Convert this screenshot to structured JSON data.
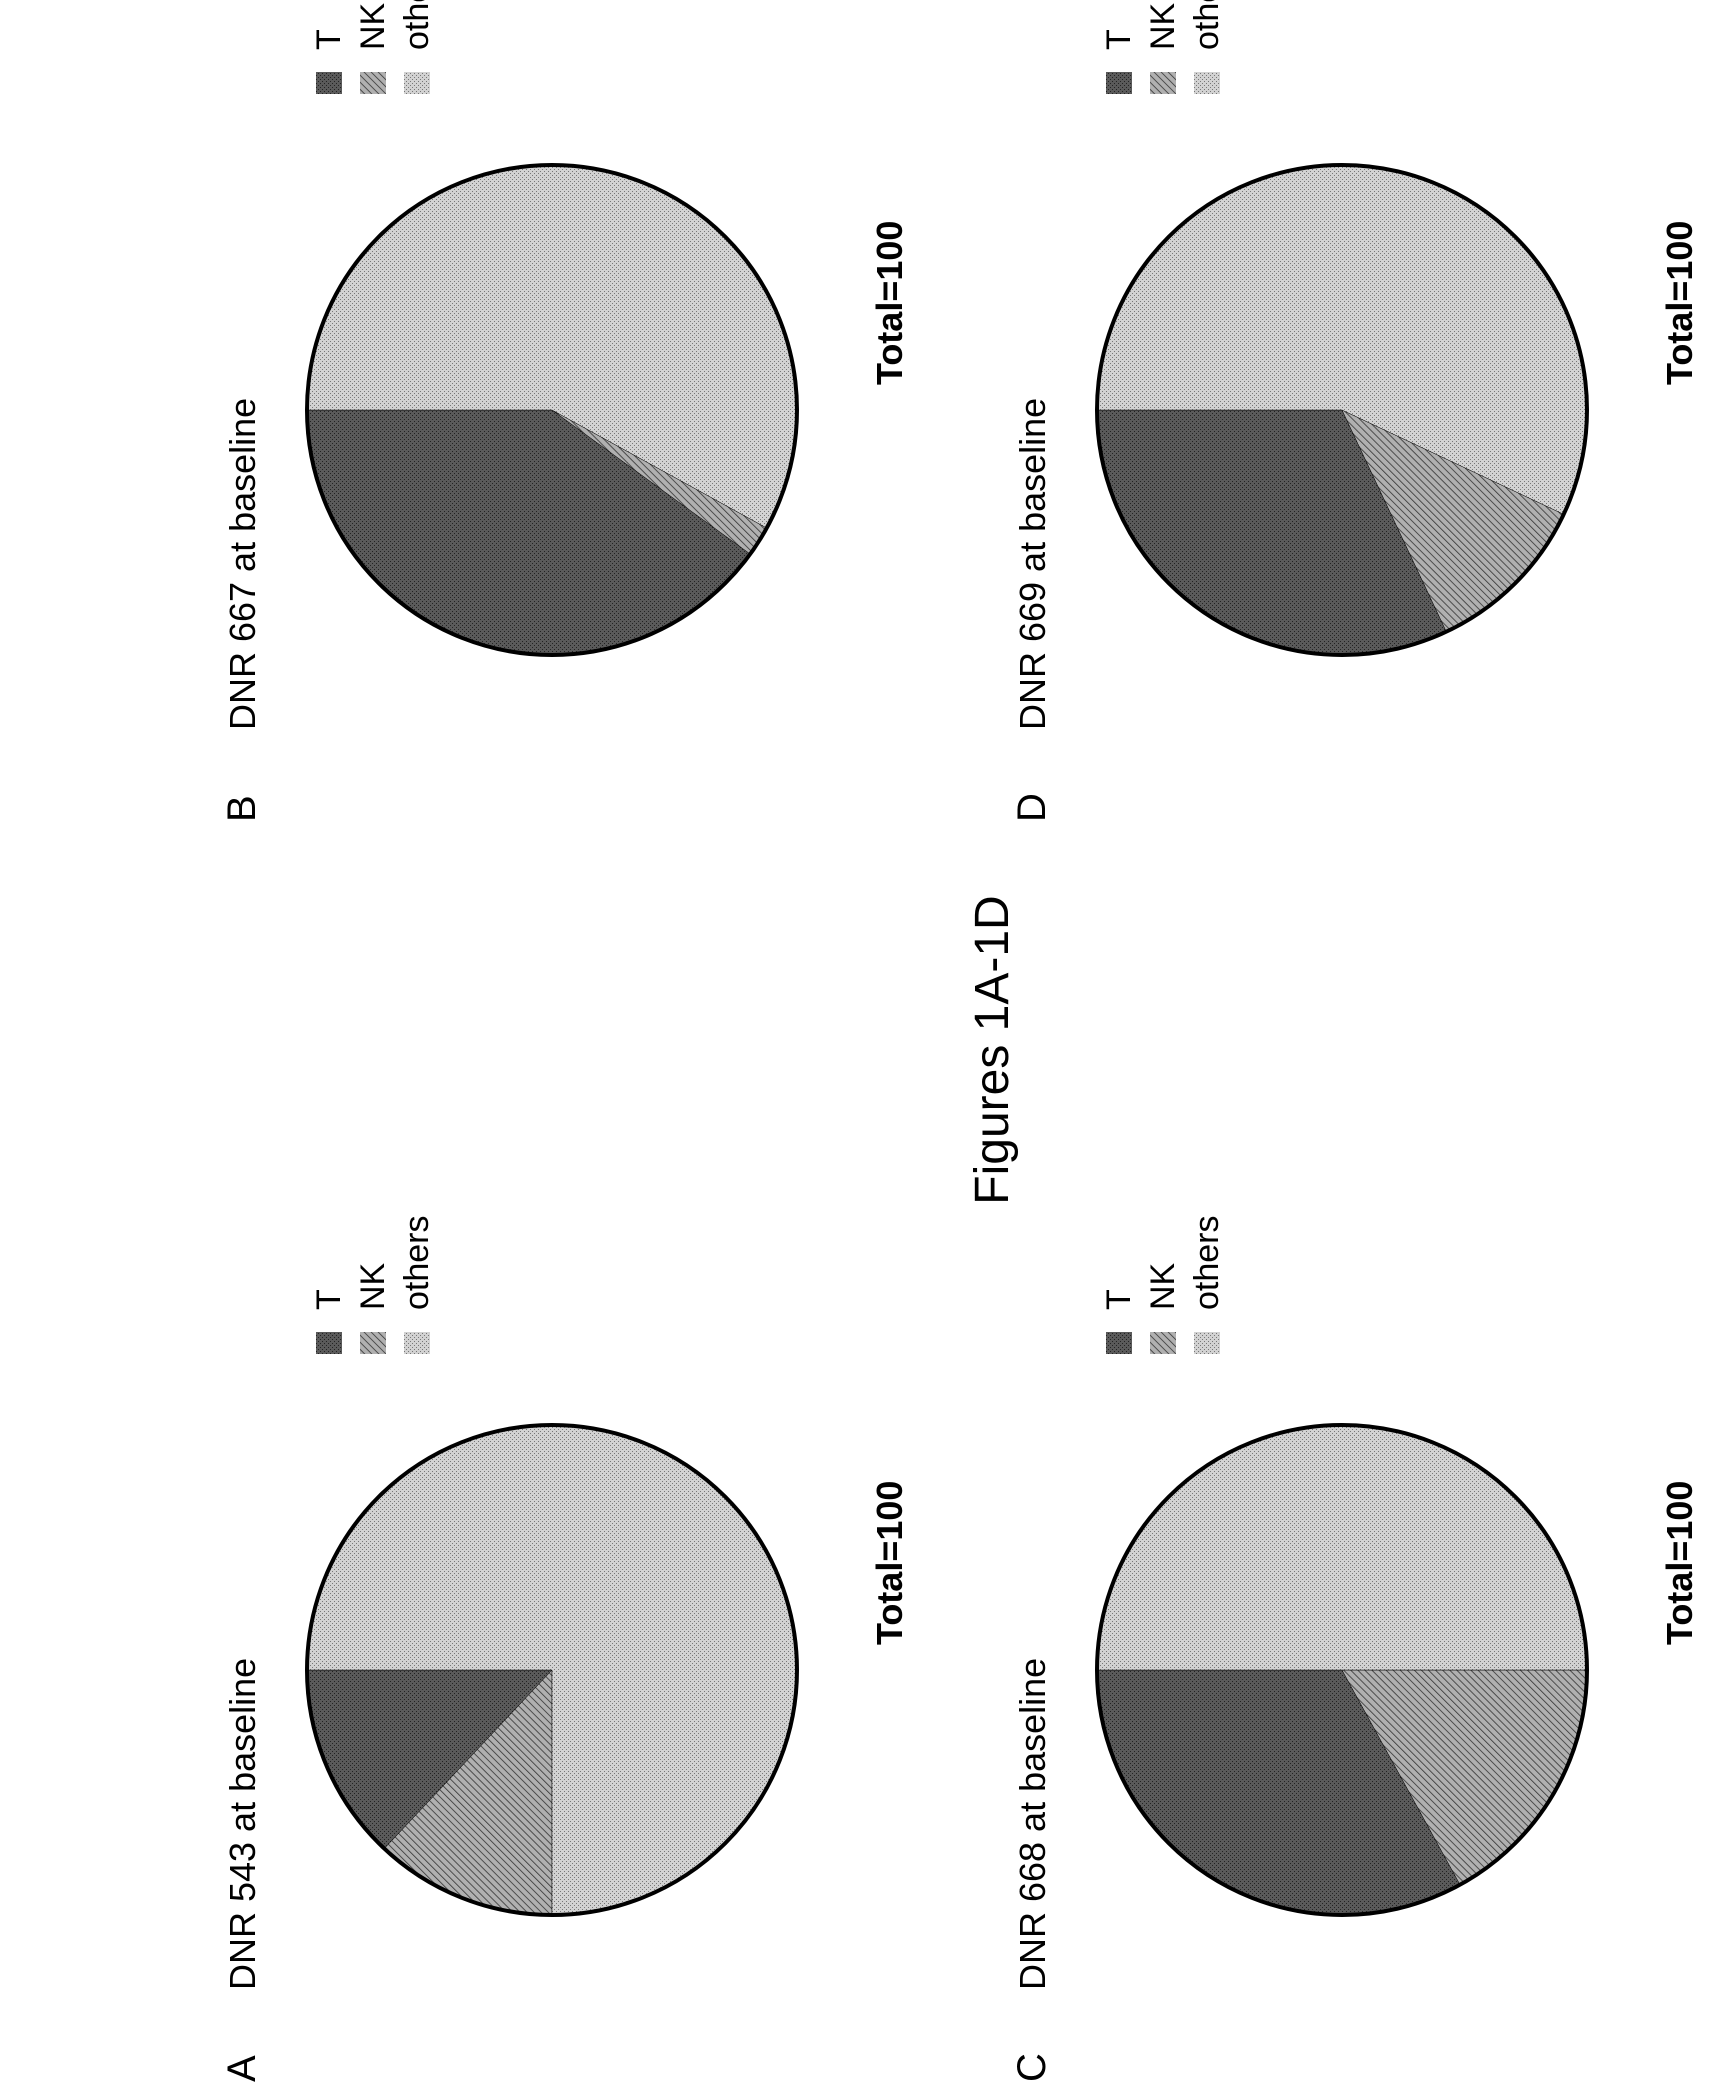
{
  "figure_title": "Figures 1A-1D",
  "colors": {
    "T": "#4a4a4a",
    "NK": "#8a8a8a",
    "others": "#c4c4c4",
    "outline": "#000000"
  },
  "chart_data": [
    {
      "type": "pie",
      "panel": "A",
      "title": "DNR 543 at baseline",
      "total_label": "Total=100",
      "legend": [
        "T",
        "NK",
        "others"
      ],
      "categories": [
        "T",
        "NK",
        "others"
      ],
      "values": [
        13,
        12,
        75
      ],
      "legend_position": "right"
    },
    {
      "type": "pie",
      "panel": "B",
      "title": "DNR 667 at baseline",
      "total_label": "Total=100",
      "legend": [
        "T",
        "NK",
        "others"
      ],
      "categories": [
        "T",
        "NK",
        "others"
      ],
      "values": [
        40,
        2,
        58
      ],
      "legend_position": "right"
    },
    {
      "type": "pie",
      "panel": "C",
      "title": "DNR 668 at baseline",
      "total_label": "Total=100",
      "legend": [
        "T",
        "NK",
        "others"
      ],
      "categories": [
        "T",
        "NK",
        "others"
      ],
      "values": [
        33,
        17,
        50
      ],
      "legend_position": "right"
    },
    {
      "type": "pie",
      "panel": "D",
      "title": "DNR 669 at baseline",
      "total_label": "Total=100",
      "legend": [
        "T",
        "NK",
        "others"
      ],
      "categories": [
        "T",
        "NK",
        "others"
      ],
      "values": [
        32,
        11,
        57
      ],
      "legend_position": "right"
    }
  ]
}
